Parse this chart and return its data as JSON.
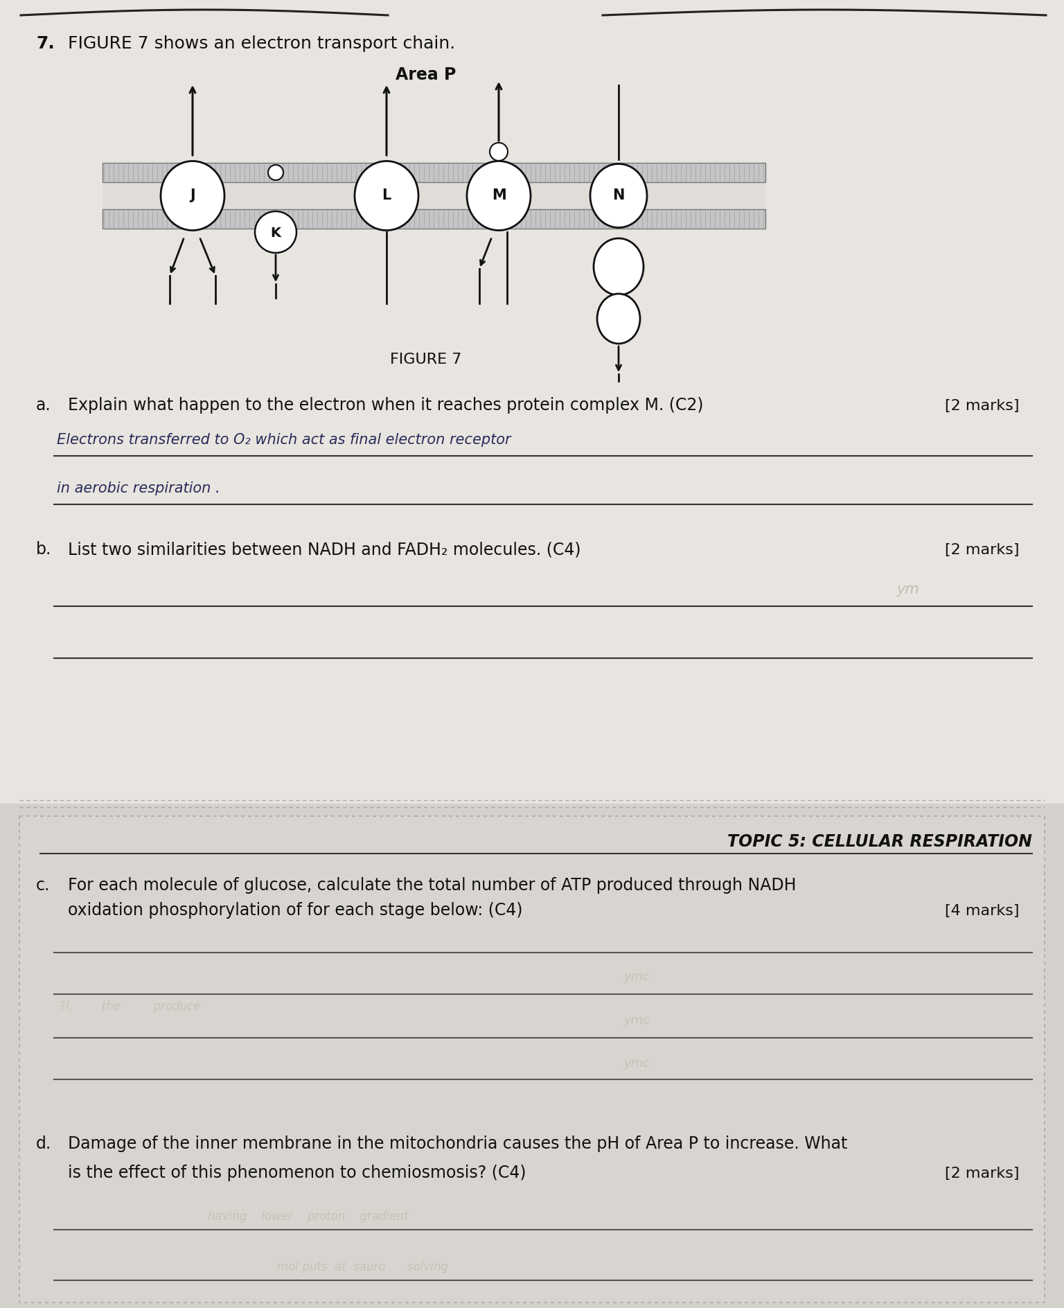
{
  "bg_top": "#e8e5e0",
  "bg_bottom": "#d5d2cd",
  "question_number": "7.",
  "intro_text": "FIGURE 7 shows an electron transport chain.",
  "area_p_label": "Area P",
  "figure_label": "FIGURE 7",
  "q_a_label": "a.",
  "q_a_text": "Explain what happen to the electron when it reaches protein complex M. (C2)",
  "q_a_marks": "[2 marks]",
  "q_a_answer_line1": "Electrons transferred to O₂ which act as final electron receptor",
  "q_a_answer_line2": "in aerobic respiration .",
  "q_b_label": "b.",
  "q_b_marks": "[2 marks]",
  "topic_header": "TOPIC 5: CELLULAR RESPIRATION",
  "q_c_label": "c.",
  "q_c_text1": "For each molecule of glucose, calculate the total number of ATP produced through NADH",
  "q_c_text2": "oxidation phosphorylation of for each stage below: (C4)",
  "q_c_marks": "[4 marks]",
  "q_d_label": "d.",
  "q_d_text1": "Damage of the inner membrane in the mitochondria causes the pH of Area P to increase. What",
  "q_d_text2": "is the effect of this phenomenon to chemiosmosis? (C4)",
  "q_d_marks": "[2 marks]",
  "arrow_color": "#111111",
  "handwriting_color": "#2a2a5a",
  "line_color": "#333333"
}
